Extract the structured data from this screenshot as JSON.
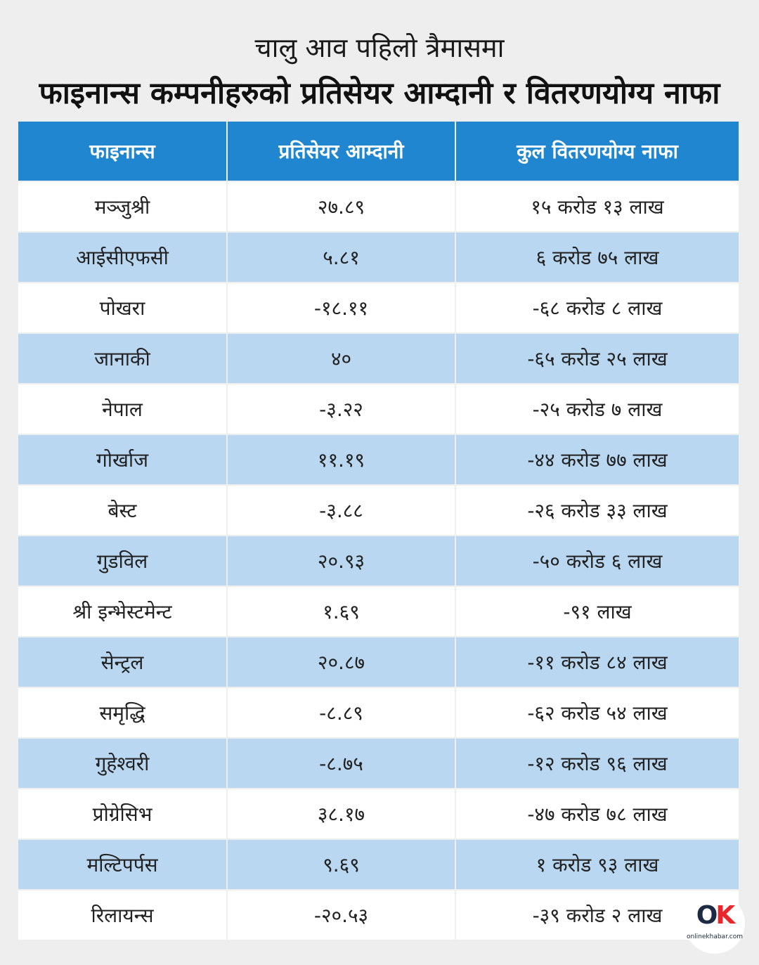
{
  "title_line1": "चालु आव पहिलो त्रैमासमा",
  "title_line2": "फाइनान्स कम्पनीहरुको प्रतिसेयर आम्दानी र वितरणयोग्य नाफा",
  "table": {
    "headers": [
      "फाइनान्स",
      "प्रतिसेयर आम्दानी",
      "कुल वितरणयोग्य नाफा"
    ],
    "rows": [
      [
        "मञ्जुश्री",
        "२७.८९",
        "१५ करोड १३ लाख"
      ],
      [
        "आईसीएफसी",
        "५.८१",
        "६ करोड ७५ लाख"
      ],
      [
        "पोखरा",
        "-१८.११",
        "-६८ करोड ८ लाख"
      ],
      [
        "जानाकी",
        "४०",
        "-६५ करोड २५ लाख"
      ],
      [
        "नेपाल",
        "-३.२२",
        "-२५ करोड ७ लाख"
      ],
      [
        "गोर्खाज",
        "११.१९",
        "-४४ करोड ७७ लाख"
      ],
      [
        "बेस्ट",
        "-३.८८",
        "-२६ करोड ३३ लाख"
      ],
      [
        "गुडविल",
        "२०.९३",
        "-५० करोड ६ लाख"
      ],
      [
        "श्री इन्भेस्टमेन्ट",
        "१.६९",
        "-९१ लाख"
      ],
      [
        "सेन्ट्रल",
        "२०.८७",
        "-११ करोड ८४ लाख"
      ],
      [
        "समृद्धि",
        "-८.८९",
        "-६२ करोड ५४ लाख"
      ],
      [
        "गुहेश्वरी",
        "-८.७५",
        "-१२ करोड ९६ लाख"
      ],
      [
        "प्रोग्रेसिभ",
        "३८.१७",
        "-४७ करोड ७८ लाख"
      ],
      [
        "मल्टिपर्पस",
        "९.६९",
        "१ करोड ९३ लाख"
      ],
      [
        "रिलायन्स",
        "-२०.५३",
        "-३९ करोड २ लाख"
      ]
    ]
  },
  "logo": {
    "mark_o": "O",
    "mark_k": "K",
    "text": "onlinekhabar.com"
  },
  "colors": {
    "header_bg": "#1f86cf",
    "row_alt_bg": "#b9d7f1",
    "page_bg": "#eeeeee"
  }
}
